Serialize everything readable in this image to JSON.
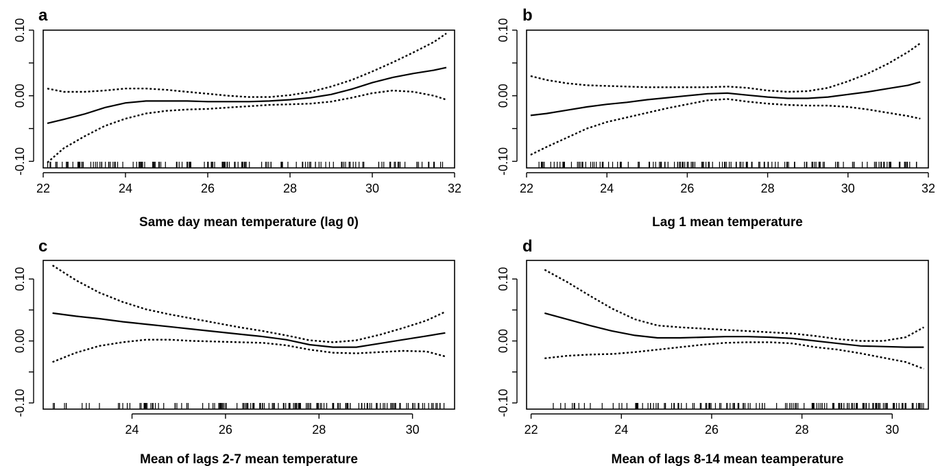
{
  "chart_data": [
    {
      "type": "line",
      "panel_label": "a",
      "xlabel": "Same day mean temperature (lag 0)",
      "ylabel": "",
      "xlim": [
        22,
        32
      ],
      "ylim": [
        -0.11,
        0.1
      ],
      "xticks": [
        22,
        24,
        26,
        28,
        30,
        32
      ],
      "yticks": [
        -0.1,
        0.0,
        0.1
      ],
      "ytick_labels": [
        "-0.10",
        "0.00",
        "0.10"
      ],
      "series": [
        {
          "style": "solid",
          "x": [
            22.1,
            22.5,
            23,
            23.5,
            24,
            24.5,
            25,
            25.5,
            26,
            26.5,
            27,
            27.5,
            28,
            28.5,
            29,
            29.5,
            30,
            30.5,
            31,
            31.5,
            31.8
          ],
          "y": [
            -0.042,
            -0.036,
            -0.028,
            -0.018,
            -0.011,
            -0.008,
            -0.008,
            -0.008,
            -0.009,
            -0.009,
            -0.009,
            -0.008,
            -0.006,
            -0.003,
            0.002,
            0.01,
            0.02,
            0.028,
            0.034,
            0.039,
            0.043
          ]
        },
        {
          "style": "dotted",
          "x": [
            22.1,
            22.5,
            23,
            23.5,
            24,
            24.5,
            25,
            25.5,
            26,
            26.5,
            27,
            27.5,
            28,
            28.5,
            29,
            29.5,
            30,
            30.5,
            31,
            31.5,
            31.8
          ],
          "y": [
            0.011,
            0.006,
            0.006,
            0.008,
            0.011,
            0.011,
            0.009,
            0.006,
            0.003,
            0.0,
            -0.002,
            -0.002,
            0.001,
            0.006,
            0.014,
            0.024,
            0.037,
            0.051,
            0.066,
            0.082,
            0.095
          ]
        },
        {
          "style": "dotted",
          "x": [
            22.1,
            22.5,
            23,
            23.5,
            24,
            24.5,
            25,
            25.5,
            26,
            26.5,
            27,
            27.5,
            28,
            28.5,
            29,
            29.5,
            30,
            30.5,
            31,
            31.5,
            31.8
          ],
          "y": [
            -0.102,
            -0.08,
            -0.062,
            -0.046,
            -0.035,
            -0.027,
            -0.023,
            -0.021,
            -0.02,
            -0.018,
            -0.016,
            -0.014,
            -0.013,
            -0.012,
            -0.009,
            -0.003,
            0.004,
            0.008,
            0.006,
            0.0,
            -0.006
          ]
        }
      ]
    },
    {
      "type": "line",
      "panel_label": "b",
      "xlabel": "Lag 1 mean temperature",
      "ylabel": "",
      "xlim": [
        22,
        32
      ],
      "ylim": [
        -0.11,
        0.1
      ],
      "xticks": [
        22,
        24,
        26,
        28,
        30,
        32
      ],
      "yticks": [
        -0.1,
        0.0,
        0.1
      ],
      "ytick_labels": [
        "-0.10",
        "0.00",
        "0.10"
      ],
      "series": [
        {
          "style": "solid",
          "x": [
            22.1,
            22.5,
            23,
            23.5,
            24,
            24.5,
            25,
            25.5,
            26,
            26.5,
            27,
            27.5,
            28,
            28.5,
            29,
            29.5,
            30,
            30.5,
            31,
            31.5,
            31.8
          ],
          "y": [
            -0.03,
            -0.027,
            -0.022,
            -0.017,
            -0.013,
            -0.01,
            -0.006,
            -0.003,
            0.0,
            0.003,
            0.004,
            0.001,
            -0.002,
            -0.004,
            -0.004,
            -0.002,
            0.002,
            0.006,
            0.011,
            0.016,
            0.021
          ]
        },
        {
          "style": "dotted",
          "x": [
            22.1,
            22.5,
            23,
            23.5,
            24,
            24.5,
            25,
            25.5,
            26,
            26.5,
            27,
            27.5,
            28,
            28.5,
            29,
            29.5,
            30,
            30.5,
            31,
            31.5,
            31.8
          ],
          "y": [
            0.03,
            0.024,
            0.019,
            0.016,
            0.015,
            0.014,
            0.013,
            0.013,
            0.013,
            0.013,
            0.014,
            0.012,
            0.008,
            0.006,
            0.007,
            0.012,
            0.022,
            0.034,
            0.049,
            0.067,
            0.08
          ]
        },
        {
          "style": "dotted",
          "x": [
            22.1,
            22.5,
            23,
            23.5,
            24,
            24.5,
            25,
            25.5,
            26,
            26.5,
            27,
            27.5,
            28,
            28.5,
            29,
            29.5,
            30,
            30.5,
            31,
            31.5,
            31.8
          ],
          "y": [
            -0.09,
            -0.078,
            -0.064,
            -0.05,
            -0.04,
            -0.033,
            -0.026,
            -0.019,
            -0.013,
            -0.007,
            -0.005,
            -0.009,
            -0.012,
            -0.014,
            -0.015,
            -0.015,
            -0.017,
            -0.021,
            -0.026,
            -0.031,
            -0.035
          ]
        }
      ]
    },
    {
      "type": "line",
      "panel_label": "c",
      "xlabel": "Mean of lags 2-7 mean temperature",
      "ylabel": "",
      "xlim": [
        22.1,
        30.9
      ],
      "ylim": [
        -0.11,
        0.13
      ],
      "xticks": [
        24,
        26,
        28,
        30
      ],
      "yticks": [
        -0.1,
        0.0,
        0.1
      ],
      "ytick_labels": [
        "-0.10",
        "0.00",
        "0.10"
      ],
      "series": [
        {
          "style": "solid",
          "x": [
            22.3,
            22.8,
            23.3,
            23.8,
            24.3,
            24.8,
            25.3,
            25.8,
            26.3,
            26.8,
            27.3,
            27.8,
            28.3,
            28.8,
            29.3,
            29.8,
            30.3,
            30.7
          ],
          "y": [
            0.045,
            0.04,
            0.036,
            0.031,
            0.027,
            0.023,
            0.019,
            0.015,
            0.011,
            0.007,
            0.002,
            -0.006,
            -0.01,
            -0.01,
            -0.004,
            0.002,
            0.008,
            0.013
          ]
        },
        {
          "style": "dotted",
          "x": [
            22.3,
            22.8,
            23.3,
            23.8,
            24.3,
            24.8,
            25.3,
            25.8,
            26.3,
            26.8,
            27.3,
            27.8,
            28.3,
            28.8,
            29.3,
            29.8,
            30.3,
            30.7
          ],
          "y": [
            0.122,
            0.098,
            0.078,
            0.063,
            0.051,
            0.043,
            0.036,
            0.029,
            0.022,
            0.016,
            0.009,
            0.001,
            -0.002,
            0.001,
            0.01,
            0.021,
            0.033,
            0.047
          ]
        },
        {
          "style": "dotted",
          "x": [
            22.3,
            22.8,
            23.3,
            23.8,
            24.3,
            24.8,
            25.3,
            25.8,
            26.3,
            26.8,
            27.3,
            27.8,
            28.3,
            28.8,
            29.3,
            29.8,
            30.3,
            30.7
          ],
          "y": [
            -0.034,
            -0.019,
            -0.008,
            -0.002,
            0.002,
            0.002,
            0.0,
            -0.001,
            -0.002,
            -0.003,
            -0.007,
            -0.014,
            -0.019,
            -0.02,
            -0.018,
            -0.016,
            -0.017,
            -0.025
          ]
        }
      ]
    },
    {
      "type": "line",
      "panel_label": "d",
      "xlabel": "Mean of lags 8-14 mean teamperature",
      "ylabel": "",
      "xlim": [
        21.9,
        30.8
      ],
      "ylim": [
        -0.11,
        0.13
      ],
      "xticks": [
        22,
        24,
        26,
        28,
        30
      ],
      "yticks": [
        -0.1,
        0.0,
        0.1
      ],
      "ytick_labels": [
        "-0.10",
        "0.00",
        "0.10"
      ],
      "series": [
        {
          "style": "solid",
          "x": [
            22.3,
            22.8,
            23.3,
            23.8,
            24.3,
            24.8,
            25.3,
            25.8,
            26.3,
            26.8,
            27.3,
            27.8,
            28.3,
            28.8,
            29.3,
            29.8,
            30.3,
            30.7
          ],
          "y": [
            0.045,
            0.035,
            0.025,
            0.016,
            0.009,
            0.005,
            0.005,
            0.006,
            0.007,
            0.007,
            0.006,
            0.004,
            0.0,
            -0.004,
            -0.008,
            -0.009,
            -0.01,
            -0.01
          ]
        },
        {
          "style": "dotted",
          "x": [
            22.3,
            22.8,
            23.3,
            23.8,
            24.3,
            24.8,
            25.3,
            25.8,
            26.3,
            26.8,
            27.3,
            27.8,
            28.3,
            28.8,
            29.3,
            29.8,
            30.3,
            30.7
          ],
          "y": [
            0.115,
            0.095,
            0.073,
            0.052,
            0.035,
            0.025,
            0.022,
            0.02,
            0.018,
            0.016,
            0.014,
            0.012,
            0.008,
            0.003,
            0.0,
            0.0,
            0.006,
            0.022
          ]
        },
        {
          "style": "dotted",
          "x": [
            22.3,
            22.8,
            23.3,
            23.8,
            24.3,
            24.8,
            25.3,
            25.8,
            26.3,
            26.8,
            27.3,
            27.8,
            28.3,
            28.8,
            29.3,
            29.8,
            30.3,
            30.7
          ],
          "y": [
            -0.028,
            -0.024,
            -0.022,
            -0.021,
            -0.018,
            -0.014,
            -0.01,
            -0.006,
            -0.003,
            -0.002,
            -0.002,
            -0.004,
            -0.01,
            -0.014,
            -0.02,
            -0.027,
            -0.034,
            -0.045
          ]
        }
      ]
    }
  ]
}
